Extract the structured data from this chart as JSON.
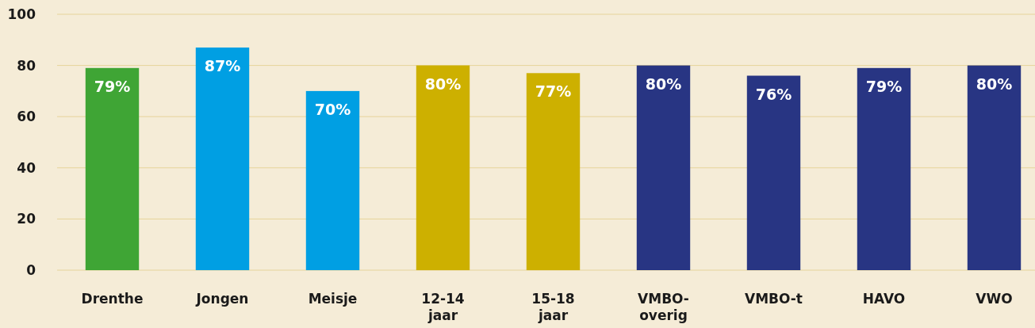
{
  "chart_data": {
    "type": "bar",
    "categories": [
      "Drenthe",
      "Jongen",
      "Meisje",
      "12-14 jaar",
      "15-18 jaar",
      "VMBO-overig",
      "VMBO-t",
      "HAVO",
      "VWO"
    ],
    "values": [
      79,
      87,
      70,
      80,
      77,
      80,
      76,
      79,
      80
    ],
    "colors": [
      "#3fa535",
      "#009fe3",
      "#009fe3",
      "#cdb000",
      "#cdb000",
      "#283583",
      "#283583",
      "#283583",
      "#283583"
    ],
    "value_labels": [
      "79%",
      "87%",
      "70%",
      "80%",
      "77%",
      "80%",
      "76%",
      "79%",
      "80%"
    ],
    "ylim": [
      0,
      100
    ],
    "yticks": [
      0,
      20,
      40,
      60,
      80,
      100
    ],
    "grid": "y"
  }
}
